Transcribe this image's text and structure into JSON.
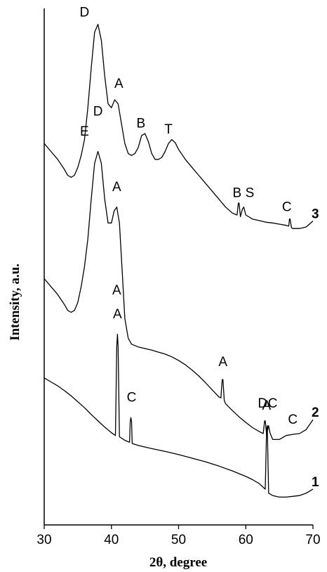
{
  "chart_data": {
    "type": "line",
    "xlabel": "2θ, degree",
    "ylabel": "Intensity, a.u.",
    "xlim": [
      30,
      70
    ],
    "xticks": [
      "30",
      "40",
      "50",
      "60",
      "70"
    ],
    "y_ticks_shown": false,
    "grid": false,
    "legend": "none",
    "series": [
      {
        "curve_label": "1",
        "points": [
          [
            30,
            0.37
          ],
          [
            31,
            0.36
          ],
          [
            32,
            0.35
          ],
          [
            33,
            0.338
          ],
          [
            34,
            0.325
          ],
          [
            35,
            0.31
          ],
          [
            36,
            0.295
          ],
          [
            37,
            0.278
          ],
          [
            38,
            0.262
          ],
          [
            39,
            0.246
          ],
          [
            40,
            0.232
          ],
          [
            40.6,
            0.225
          ],
          [
            40.8,
            0.45
          ],
          [
            40.9,
            0.48
          ],
          [
            41.0,
            0.45
          ],
          [
            41.2,
            0.222
          ],
          [
            42,
            0.213
          ],
          [
            42.7,
            0.208
          ],
          [
            42.8,
            0.26
          ],
          [
            42.9,
            0.27
          ],
          [
            43.0,
            0.26
          ],
          [
            43.1,
            0.205
          ],
          [
            44,
            0.2
          ],
          [
            46,
            0.192
          ],
          [
            48,
            0.185
          ],
          [
            50,
            0.177
          ],
          [
            52,
            0.168
          ],
          [
            54,
            0.159
          ],
          [
            56,
            0.148
          ],
          [
            58,
            0.136
          ],
          [
            60,
            0.122
          ],
          [
            61,
            0.114
          ],
          [
            62,
            0.104
          ],
          [
            62.9,
            0.09
          ],
          [
            63.1,
            0.24
          ],
          [
            63.2,
            0.25
          ],
          [
            63.4,
            0.08
          ],
          [
            64,
            0.074
          ],
          [
            65,
            0.07
          ],
          [
            66,
            0.07
          ],
          [
            67,
            0.072
          ],
          [
            68,
            0.074
          ],
          [
            69,
            0.08
          ],
          [
            70,
            0.09
          ]
        ],
        "peak_labels": [
          {
            "text": "A",
            "x": 40.9,
            "y": 0.52
          },
          {
            "text": "C",
            "x": 43.0,
            "y": 0.31
          },
          {
            "text": "A",
            "x": 63.1,
            "y": 0.29
          }
        ]
      },
      {
        "curve_label": "2",
        "points": [
          [
            30,
            0.62
          ],
          [
            31,
            0.6
          ],
          [
            32,
            0.58
          ],
          [
            33,
            0.555
          ],
          [
            33.5,
            0.54
          ],
          [
            34,
            0.535
          ],
          [
            34.5,
            0.54
          ],
          [
            35,
            0.56
          ],
          [
            35.5,
            0.6
          ],
          [
            36,
            0.65
          ],
          [
            36.5,
            0.72
          ],
          [
            37,
            0.82
          ],
          [
            37.5,
            0.91
          ],
          [
            38,
            0.94
          ],
          [
            38.5,
            0.91
          ],
          [
            39,
            0.82
          ],
          [
            39.5,
            0.76
          ],
          [
            40,
            0.76
          ],
          [
            40.4,
            0.79
          ],
          [
            40.8,
            0.8
          ],
          [
            41.2,
            0.76
          ],
          [
            41.6,
            0.64
          ],
          [
            42,
            0.52
          ],
          [
            42.5,
            0.47
          ],
          [
            43,
            0.455
          ],
          [
            44,
            0.448
          ],
          [
            45,
            0.444
          ],
          [
            46,
            0.44
          ],
          [
            47,
            0.435
          ],
          [
            48,
            0.43
          ],
          [
            49,
            0.423
          ],
          [
            50,
            0.414
          ],
          [
            51,
            0.403
          ],
          [
            52,
            0.39
          ],
          [
            53,
            0.375
          ],
          [
            54,
            0.358
          ],
          [
            55,
            0.34
          ],
          [
            56,
            0.322
          ],
          [
            56.3,
            0.32
          ],
          [
            56.5,
            0.366
          ],
          [
            56.6,
            0.366
          ],
          [
            56.8,
            0.313
          ],
          [
            57,
            0.305
          ],
          [
            58,
            0.288
          ],
          [
            59,
            0.272
          ],
          [
            60,
            0.258
          ],
          [
            61,
            0.245
          ],
          [
            62,
            0.235
          ],
          [
            62.6,
            0.23
          ],
          [
            62.8,
            0.262
          ],
          [
            62.9,
            0.262
          ],
          [
            63.1,
            0.228
          ],
          [
            63.4,
            0.25
          ],
          [
            63.6,
            0.232
          ],
          [
            64,
            0.215
          ],
          [
            65,
            0.215
          ],
          [
            66,
            0.225
          ],
          [
            67,
            0.228
          ],
          [
            68,
            0.23
          ],
          [
            69,
            0.24
          ],
          [
            70,
            0.265
          ]
        ],
        "peak_labels": [
          {
            "text": "E",
            "x": 36.0,
            "y": 0.98
          },
          {
            "text": "D",
            "x": 38.0,
            "y": 1.03
          },
          {
            "text": "A",
            "x": 40.8,
            "y": 0.84
          },
          {
            "text": "A",
            "x": 40.8,
            "y": 0.58
          },
          {
            "text": "A",
            "x": 56.6,
            "y": 0.4
          },
          {
            "text": "D",
            "x": 62.5,
            "y": 0.295
          },
          {
            "text": "C",
            "x": 64.0,
            "y": 0.295
          },
          {
            "text": "C",
            "x": 67.0,
            "y": 0.255
          }
        ]
      },
      {
        "curve_label": "3",
        "points": [
          [
            30,
            0.96
          ],
          [
            31,
            0.94
          ],
          [
            32,
            0.92
          ],
          [
            33,
            0.895
          ],
          [
            33.5,
            0.88
          ],
          [
            34,
            0.875
          ],
          [
            34.5,
            0.88
          ],
          [
            35,
            0.9
          ],
          [
            35.5,
            0.93
          ],
          [
            36,
            0.97
          ],
          [
            36.5,
            1.05
          ],
          [
            37,
            1.15
          ],
          [
            37.5,
            1.24
          ],
          [
            38,
            1.26
          ],
          [
            38.5,
            1.22
          ],
          [
            39,
            1.13
          ],
          [
            39.5,
            1.06
          ],
          [
            40,
            1.05
          ],
          [
            40.5,
            1.07
          ],
          [
            41,
            1.06
          ],
          [
            41.5,
            1.01
          ],
          [
            42,
            0.96
          ],
          [
            42.5,
            0.935
          ],
          [
            43,
            0.93
          ],
          [
            43.5,
            0.935
          ],
          [
            44,
            0.95
          ],
          [
            44.5,
            0.98
          ],
          [
            45,
            0.985
          ],
          [
            45.5,
            0.965
          ],
          [
            46,
            0.935
          ],
          [
            46.5,
            0.92
          ],
          [
            47,
            0.92
          ],
          [
            47.5,
            0.925
          ],
          [
            48,
            0.94
          ],
          [
            48.5,
            0.96
          ],
          [
            49,
            0.97
          ],
          [
            49.5,
            0.962
          ],
          [
            50,
            0.945
          ],
          [
            51,
            0.92
          ],
          [
            52,
            0.9
          ],
          [
            53,
            0.88
          ],
          [
            54,
            0.86
          ],
          [
            55,
            0.84
          ],
          [
            56,
            0.82
          ],
          [
            57,
            0.8
          ],
          [
            58,
            0.785
          ],
          [
            58.7,
            0.78
          ],
          [
            58.9,
            0.81
          ],
          [
            59.0,
            0.81
          ],
          [
            59.2,
            0.776
          ],
          [
            59.5,
            0.795
          ],
          [
            59.7,
            0.8
          ],
          [
            60,
            0.78
          ],
          [
            61,
            0.77
          ],
          [
            62,
            0.766
          ],
          [
            63,
            0.762
          ],
          [
            64,
            0.76
          ],
          [
            65,
            0.757
          ],
          [
            66,
            0.754
          ],
          [
            66.4,
            0.752
          ],
          [
            66.5,
            0.77
          ],
          [
            66.6,
            0.77
          ],
          [
            66.8,
            0.748
          ],
          [
            67,
            0.746
          ],
          [
            68,
            0.746
          ],
          [
            69,
            0.75
          ],
          [
            70,
            0.765
          ]
        ],
        "peak_labels": [
          {
            "text": "D",
            "x": 36.0,
            "y": 1.28
          },
          {
            "text": "A",
            "x": 41.1,
            "y": 1.1
          },
          {
            "text": "B",
            "x": 44.4,
            "y": 1.0
          },
          {
            "text": "T",
            "x": 48.5,
            "y": 0.985
          },
          {
            "text": "B",
            "x": 58.7,
            "y": 0.825
          },
          {
            "text": "S",
            "x": 60.6,
            "y": 0.825
          },
          {
            "text": "C",
            "x": 66.1,
            "y": 0.79
          }
        ]
      }
    ]
  }
}
